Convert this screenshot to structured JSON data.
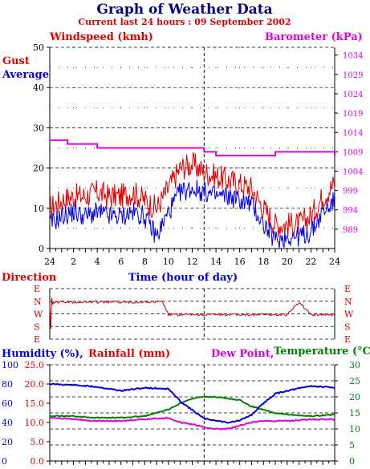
{
  "title": "Graph of Weather Data",
  "subtitle": "Current last 24 hours : 09 September 2002",
  "colors": {
    "red": "#e00000",
    "blue": "#0000e0",
    "magenta": "#e000e0",
    "green": "#008000",
    "navy": "#000080"
  },
  "wind_panel": {
    "left_label": "Windspeed (kmh)",
    "right_label": "Barometer (kPa)",
    "gust_label": "Gust",
    "average_label": "Average",
    "xlabel": "Time (hour of day)"
  },
  "direction_panel": {
    "label": "Direction"
  },
  "bottom_panel": {
    "humidity_label": "Humidity (%),",
    "rainfall_label": "Rainfall (mm)",
    "dewpoint_label": "Dew Point,",
    "temperature_label": "Temperature (°C)"
  },
  "chart_data": [
    {
      "type": "line",
      "x_ticks": [
        "24",
        "2",
        "4",
        "6",
        "8",
        "10",
        "12",
        "14",
        "16",
        "18",
        "20",
        "22",
        "24"
      ],
      "y_left_ticks": [
        "0",
        "10",
        "20",
        "30",
        "40",
        "50"
      ],
      "y_right_ticks": [
        "989",
        "994",
        "999",
        "1004",
        "1009",
        "1014",
        "1019",
        "1024",
        "1029",
        "1034"
      ],
      "ylim_left": [
        0,
        50
      ],
      "ylim_right": [
        984,
        1036
      ],
      "grid": true,
      "series": [
        {
          "name": "Gust",
          "axis": "left",
          "color": "#e00000",
          "x": [
            0,
            1,
            2,
            3,
            4,
            5,
            6,
            7,
            8,
            9,
            10,
            11,
            12,
            13,
            14,
            15,
            16,
            17,
            18,
            19,
            20,
            21,
            22,
            23,
            24
          ],
          "values": [
            10,
            12,
            13,
            13,
            14,
            13,
            13,
            14,
            12,
            10,
            15,
            20,
            21,
            19,
            18,
            17,
            16,
            15,
            10,
            6,
            6,
            6,
            8,
            13,
            16
          ]
        },
        {
          "name": "Average",
          "axis": "left",
          "color": "#0000e0",
          "x": [
            0,
            1,
            2,
            3,
            4,
            5,
            6,
            7,
            8,
            9,
            10,
            11,
            12,
            13,
            14,
            15,
            16,
            17,
            18,
            19,
            20,
            21,
            22,
            23,
            24
          ],
          "values": [
            6,
            8,
            9,
            8,
            9,
            8,
            8,
            9,
            8,
            3,
            9,
            14,
            15,
            14,
            13,
            13,
            12,
            11,
            6,
            2,
            3,
            3,
            4,
            9,
            12
          ]
        },
        {
          "name": "Barometer",
          "axis": "right",
          "color": "#e000e0",
          "x": [
            0,
            1,
            1.5,
            2,
            3,
            4,
            6,
            8,
            10,
            12,
            13,
            14,
            16,
            18,
            19,
            20,
            22,
            24
          ],
          "values": [
            1012,
            1012,
            1011,
            1011,
            1011,
            1010,
            1010,
            1010,
            1010,
            1010,
            1009,
            1008,
            1008,
            1008,
            1009,
            1009,
            1009,
            1008
          ]
        }
      ]
    },
    {
      "type": "line",
      "name": "Direction",
      "y_ticks": [
        "E",
        "N",
        "W",
        "S",
        "E"
      ],
      "x": [
        0,
        0.3,
        1,
        2,
        4,
        6,
        8,
        9.5,
        10,
        11,
        12,
        14,
        16,
        18,
        20,
        21,
        22,
        24
      ],
      "values": [
        "N",
        "N",
        "N",
        "N",
        "N",
        "N",
        "N",
        "N",
        "W",
        "W",
        "W",
        "W",
        "W",
        "W",
        "W",
        "N",
        "W",
        "W"
      ]
    },
    {
      "type": "line",
      "y_left_ticks": [
        "0",
        "20",
        "40",
        "60",
        "80",
        "100"
      ],
      "y_left2_ticks": [
        "0.0",
        "5.0",
        "10.0",
        "15.0",
        "20.0",
        "25.0"
      ],
      "y_right_ticks": [
        "0",
        "5",
        "10",
        "15",
        "20",
        "25",
        "30"
      ],
      "ylim_left": [
        0,
        100
      ],
      "ylim_right": [
        0,
        30
      ],
      "series": [
        {
          "name": "Humidity",
          "axis": "left",
          "color": "#0000e0",
          "x": [
            0,
            2,
            4,
            6,
            8,
            10,
            11,
            12,
            13,
            14,
            15,
            16,
            17,
            18,
            19,
            20,
            22,
            24
          ],
          "values": [
            80,
            79,
            77,
            73,
            76,
            75,
            62,
            53,
            44,
            42,
            40,
            42,
            48,
            60,
            70,
            73,
            78,
            76
          ]
        },
        {
          "name": "Temperature",
          "axis": "right",
          "color": "#008000",
          "x": [
            0,
            2,
            4,
            6,
            8,
            10,
            11,
            12,
            13,
            14,
            15,
            16,
            17,
            18,
            19,
            20,
            22,
            24
          ],
          "values": [
            14,
            14,
            13.5,
            13.5,
            14,
            16,
            18,
            19.5,
            20,
            20,
            19.5,
            19,
            17,
            16,
            15,
            14.5,
            14,
            14.5
          ]
        },
        {
          "name": "Dew Point",
          "axis": "right",
          "color": "#e000e0",
          "x": [
            0,
            2,
            4,
            6,
            8,
            10,
            11,
            12,
            13,
            14,
            15,
            16,
            17,
            18,
            19,
            20,
            22,
            24
          ],
          "values": [
            13.5,
            13,
            12.5,
            12.5,
            13,
            13.5,
            12,
            11.5,
            10.5,
            10,
            10,
            11,
            12,
            12.5,
            12.5,
            12.5,
            13,
            13
          ]
        },
        {
          "name": "Rainfall",
          "axis": "left2",
          "color": "#e00000",
          "x": [
            0,
            24
          ],
          "values": [
            0,
            0
          ]
        }
      ]
    }
  ]
}
